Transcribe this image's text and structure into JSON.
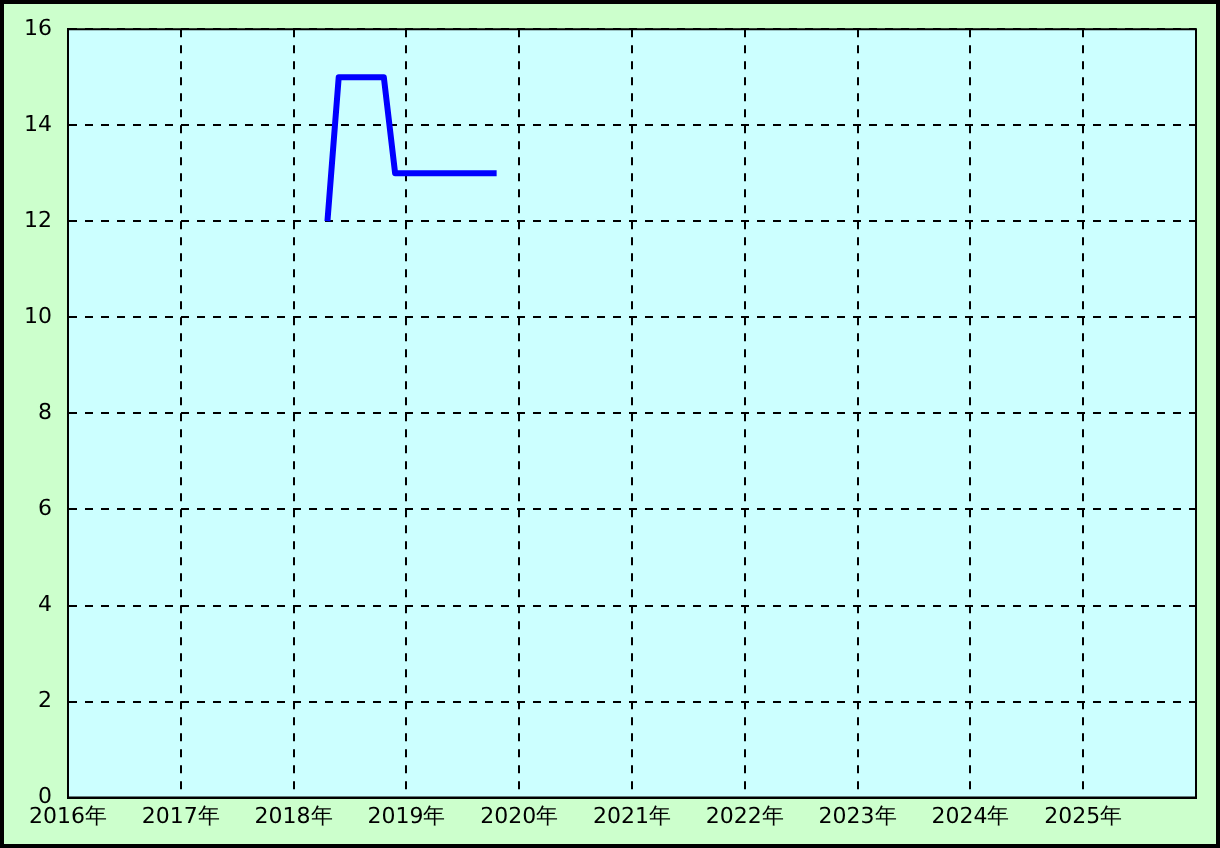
{
  "chart_data": {
    "type": "line",
    "x": [
      2018.3,
      2018.4,
      2018.8,
      2018.9,
      2019.8
    ],
    "series": [
      {
        "color": "#0000ff",
        "values": [
          12,
          15,
          15,
          13,
          13
        ]
      }
    ],
    "xlim": [
      2016,
      2026
    ],
    "xticks": [
      {
        "value": 2016,
        "label": "2016年"
      },
      {
        "value": 2017,
        "label": "2017年"
      },
      {
        "value": 2018,
        "label": "2018年"
      },
      {
        "value": 2019,
        "label": "2019年"
      },
      {
        "value": 2020,
        "label": "2020年"
      },
      {
        "value": 2021,
        "label": "2021年"
      },
      {
        "value": 2022,
        "label": "2022年"
      },
      {
        "value": 2023,
        "label": "2023年"
      },
      {
        "value": 2024,
        "label": "2024年"
      },
      {
        "value": 2025,
        "label": "2025年"
      },
      {
        "value": 2026,
        "label": null
      }
    ],
    "ylim": [
      0,
      16
    ],
    "yticks": [
      0,
      2,
      4,
      6,
      8,
      10,
      12,
      14,
      16
    ],
    "grid": true,
    "legend": false,
    "marker": "none",
    "line_style": "solid"
  }
}
